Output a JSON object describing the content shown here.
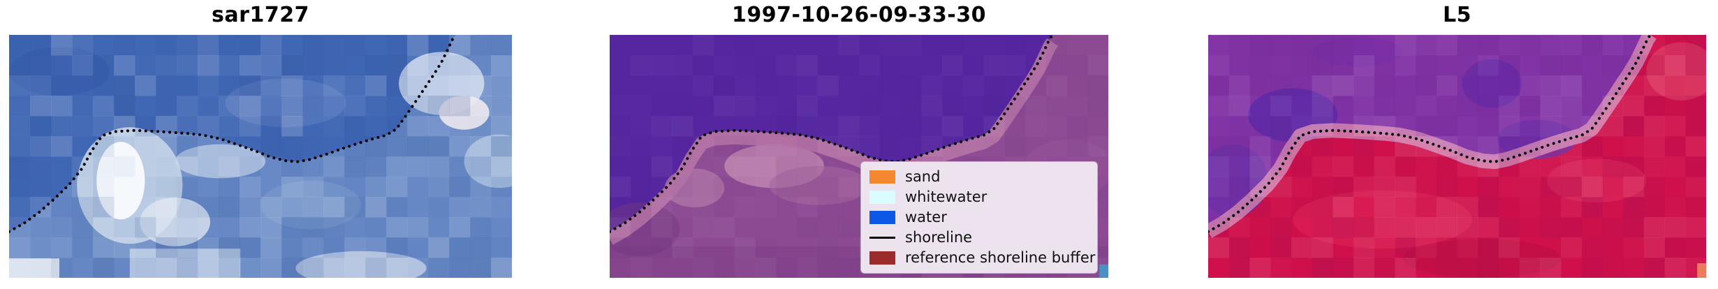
{
  "figure": {
    "background": "#ffffff"
  },
  "shoreline_norm": [
    [
      0.0,
      0.81
    ],
    [
      0.03,
      0.775
    ],
    [
      0.06,
      0.73
    ],
    [
      0.09,
      0.675
    ],
    [
      0.12,
      0.615
    ],
    [
      0.145,
      0.55
    ],
    [
      0.165,
      0.475
    ],
    [
      0.185,
      0.415
    ],
    [
      0.21,
      0.398
    ],
    [
      0.25,
      0.393
    ],
    [
      0.3,
      0.398
    ],
    [
      0.35,
      0.405
    ],
    [
      0.385,
      0.412
    ],
    [
      0.42,
      0.428
    ],
    [
      0.455,
      0.452
    ],
    [
      0.49,
      0.478
    ],
    [
      0.52,
      0.503
    ],
    [
      0.55,
      0.518
    ],
    [
      0.575,
      0.522
    ],
    [
      0.6,
      0.512
    ],
    [
      0.63,
      0.492
    ],
    [
      0.66,
      0.47
    ],
    [
      0.69,
      0.449
    ],
    [
      0.72,
      0.43
    ],
    [
      0.75,
      0.413
    ],
    [
      0.77,
      0.388
    ],
    [
      0.785,
      0.345
    ],
    [
      0.8,
      0.3
    ],
    [
      0.815,
      0.255
    ],
    [
      0.83,
      0.208
    ],
    [
      0.845,
      0.162
    ],
    [
      0.86,
      0.112
    ],
    [
      0.872,
      0.062
    ],
    [
      0.882,
      0.018
    ],
    [
      0.888,
      0.0
    ]
  ],
  "shoreline_style": {
    "color": "#000000",
    "dot_size": 4,
    "dot_gap": 8.5
  },
  "chart_data": [
    {
      "type": "heatmap",
      "title": "sar1727",
      "description": "Pixelated SAR backscatter crop in blue tones with dotted detected shoreline running from lower-left to upper-right",
      "water_color": "#4067b4",
      "land_overlay": {
        "color": "#93afd6",
        "alpha": 0.45
      },
      "noise": {
        "color_light": "#ffffff",
        "color_dark": "#24498f",
        "max_alpha": 0.17,
        "seed": 7,
        "cols": 24,
        "rows": 12
      },
      "features": [
        {
          "shape": "ellipse",
          "cx": 0.55,
          "cy": 0.28,
          "rx": 0.12,
          "ry": 0.1,
          "color": "#5578bd",
          "alpha": 0.8
        },
        {
          "shape": "ellipse",
          "cx": 0.1,
          "cy": 0.15,
          "rx": 0.1,
          "ry": 0.1,
          "color": "#3a5fae",
          "alpha": 0.8
        },
        {
          "shape": "ellipse",
          "cx": 0.24,
          "cy": 0.62,
          "rx": 0.105,
          "ry": 0.24,
          "color": "#b9cbe4",
          "alpha": 0.95
        },
        {
          "shape": "ellipse",
          "cx": 0.222,
          "cy": 0.6,
          "rx": 0.048,
          "ry": 0.16,
          "color": "#f5f8fc",
          "alpha": 1
        },
        {
          "shape": "ellipse",
          "cx": 0.42,
          "cy": 0.52,
          "rx": 0.09,
          "ry": 0.07,
          "color": "#c5d3e8",
          "alpha": 0.7
        },
        {
          "shape": "ellipse",
          "cx": 0.86,
          "cy": 0.2,
          "rx": 0.085,
          "ry": 0.13,
          "color": "#c6d4ea",
          "alpha": 0.9
        },
        {
          "shape": "ellipse",
          "cx": 0.905,
          "cy": 0.32,
          "rx": 0.05,
          "ry": 0.07,
          "color": "#eae5ed",
          "alpha": 0.9
        },
        {
          "shape": "ellipse",
          "cx": 0.975,
          "cy": 0.52,
          "rx": 0.07,
          "ry": 0.11,
          "color": "#a9bedd",
          "alpha": 0.8
        },
        {
          "shape": "ellipse",
          "cx": 0.6,
          "cy": 0.7,
          "rx": 0.1,
          "ry": 0.1,
          "color": "#7e9dcb",
          "alpha": 0.5
        },
        {
          "shape": "rect",
          "x": 0.0,
          "y": 0.92,
          "w": 0.1,
          "h": 0.08,
          "color": "#e6ecf5",
          "alpha": 0.9
        },
        {
          "shape": "rect",
          "x": 0.24,
          "y": 0.88,
          "w": 0.22,
          "h": 0.12,
          "color": "#cfdcec",
          "alpha": 0.7
        },
        {
          "shape": "ellipse",
          "cx": 0.7,
          "cy": 0.96,
          "rx": 0.13,
          "ry": 0.07,
          "color": "#cdd9ea",
          "alpha": 0.7
        },
        {
          "shape": "ellipse",
          "cx": 0.33,
          "cy": 0.77,
          "rx": 0.07,
          "ry": 0.1,
          "color": "#dbe4f0",
          "alpha": 0.8
        }
      ]
    },
    {
      "type": "heatmap",
      "title": "1997-10-26-09-33-30",
      "description": "Classified satellite image: flat purple water mask above the shoreline, mauve land below, dotted black shoreline, legend in lower right, small blue pixel in bottom-right corner",
      "water_color": "#5526a0",
      "land_color": "#8c4a92",
      "shore_band": {
        "color": "#b573a6",
        "width_frac": 0.055,
        "offset_frac": 0.03,
        "alpha": 0.9
      },
      "noise": {
        "color_light": "#ffffff",
        "color_dark": "#3a1f6e",
        "max_alpha": 0.05,
        "seed": 11,
        "cols": 24,
        "rows": 12
      },
      "features": [
        {
          "shape": "ellipse",
          "cx": 0.33,
          "cy": 0.54,
          "rx": 0.1,
          "ry": 0.09,
          "color": "#bd82ae",
          "alpha": 0.85
        },
        {
          "shape": "ellipse",
          "cx": 0.17,
          "cy": 0.63,
          "rx": 0.06,
          "ry": 0.08,
          "color": "#b077a6",
          "alpha": 0.7
        },
        {
          "shape": "ellipse",
          "cx": 0.42,
          "cy": 0.62,
          "rx": 0.1,
          "ry": 0.08,
          "color": "#a5669e",
          "alpha": 0.6
        },
        {
          "shape": "rect",
          "x": 0.0,
          "y": 0.87,
          "w": 1.0,
          "h": 0.13,
          "color": "#7c3e86",
          "alpha": 0.45
        },
        {
          "shape": "ellipse",
          "cx": 0.06,
          "cy": 0.8,
          "rx": 0.08,
          "ry": 0.11,
          "color": "#74377f",
          "alpha": 0.5
        },
        {
          "shape": "ellipse",
          "cx": 0.92,
          "cy": 0.55,
          "rx": 0.09,
          "ry": 0.12,
          "color": "#95539a",
          "alpha": 0.6
        }
      ],
      "corner_pixel": {
        "x": 0.982,
        "y": 0.945,
        "w": 0.018,
        "h": 0.055,
        "color": "#4a90c2"
      },
      "legend": {
        "background": "#ece3ee",
        "border": "#bfb0c3",
        "items": [
          {
            "label": "sand",
            "color": "#f5882f",
            "kind": "patch"
          },
          {
            "label": "whitewater",
            "color": "#d9fcff",
            "kind": "patch"
          },
          {
            "label": "water",
            "color": "#0b58e6",
            "kind": "patch"
          },
          {
            "label": "shoreline",
            "color": "#000000",
            "kind": "line"
          },
          {
            "label": "reference shoreline buffer",
            "color": "#9b2c2c",
            "kind": "patch"
          }
        ]
      }
    },
    {
      "type": "heatmap",
      "title": "L5",
      "description": "Landsat 5 RGB crop: purple water upper-left with darker violet patches, crimson land lower-right, pink transition band along dotted shoreline, small salmon pixel in bottom-right corner",
      "water_color": "#8233a5",
      "land_color": "#cf104a",
      "shore_band": {
        "color": "#d387b4",
        "width_frac": 0.06,
        "offset_frac": 0.0,
        "alpha": 0.85
      },
      "noise": {
        "color_light": "#ffffff",
        "color_dark": "#4a1470",
        "max_alpha": 0.1,
        "seed": 13,
        "cols": 24,
        "rows": 12
      },
      "features": [
        {
          "shape": "ellipse",
          "cx": 0.17,
          "cy": 0.33,
          "rx": 0.09,
          "ry": 0.11,
          "color": "#5e2ba6",
          "alpha": 0.85
        },
        {
          "shape": "ellipse",
          "cx": 0.57,
          "cy": 0.2,
          "rx": 0.06,
          "ry": 0.1,
          "color": "#6b2da7",
          "alpha": 0.85
        },
        {
          "shape": "ellipse",
          "cx": 0.66,
          "cy": 0.43,
          "rx": 0.08,
          "ry": 0.08,
          "color": "#6b2da7",
          "alpha": 0.75
        },
        {
          "shape": "ellipse",
          "cx": 0.3,
          "cy": 0.07,
          "rx": 0.09,
          "ry": 0.06,
          "color": "#7c2fa6",
          "alpha": 0.8
        },
        {
          "shape": "ellipse",
          "cx": 0.05,
          "cy": 0.6,
          "rx": 0.07,
          "ry": 0.15,
          "color": "#6930a8",
          "alpha": 0.7
        },
        {
          "shape": "ellipse",
          "cx": 0.35,
          "cy": 0.76,
          "rx": 0.18,
          "ry": 0.12,
          "color": "#e02558",
          "alpha": 0.55
        },
        {
          "shape": "ellipse",
          "cx": 0.78,
          "cy": 0.6,
          "rx": 0.1,
          "ry": 0.09,
          "color": "#e02d5e",
          "alpha": 0.5
        },
        {
          "shape": "ellipse",
          "cx": 0.55,
          "cy": 0.92,
          "rx": 0.16,
          "ry": 0.08,
          "color": "#bc0f44",
          "alpha": 0.6
        },
        {
          "shape": "ellipse",
          "cx": 0.95,
          "cy": 0.15,
          "rx": 0.07,
          "ry": 0.12,
          "color": "#e34a6b",
          "alpha": 0.5
        }
      ],
      "corner_pixel": {
        "x": 0.982,
        "y": 0.94,
        "w": 0.018,
        "h": 0.06,
        "color": "#ee7a5e"
      }
    }
  ]
}
